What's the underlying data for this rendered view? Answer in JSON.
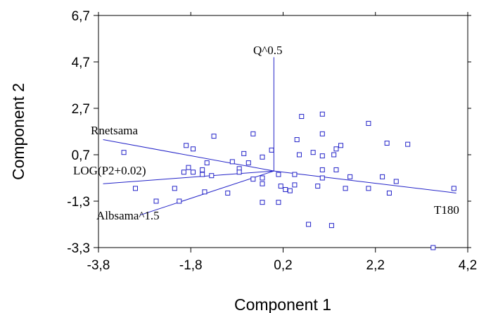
{
  "chart_data": {
    "type": "biplot",
    "xlabel": "Component 1",
    "ylabel": "Component 2",
    "xlim": [
      -3.8,
      4.2
    ],
    "ylim": [
      -3.3,
      6.7
    ],
    "xticks": [
      -3.8,
      -1.8,
      0.2,
      2.2,
      4.2
    ],
    "yticks": [
      -3.3,
      -1.3,
      0.7,
      2.7,
      4.7,
      6.7
    ],
    "xtick_labels": [
      "-3,8",
      "-1,8",
      "0,2",
      "2,2",
      "4,2"
    ],
    "ytick_labels": [
      "-3,3",
      "-1,3",
      "0,7",
      "2,7",
      "4,7",
      "6,7"
    ],
    "color": "#2323c8",
    "vectors": [
      {
        "label": "Q^0.5",
        "x": 0.0,
        "y": 4.9
      },
      {
        "label": "Rnetsama",
        "x": -3.7,
        "y": 1.35
      },
      {
        "label": "LOG(P2+0.02)",
        "x": -3.7,
        "y": -0.55
      },
      {
        "label": "Albsama^1.5",
        "x": -2.9,
        "y": -1.9
      },
      {
        "label": "T180",
        "x": 3.95,
        "y": -0.95
      }
    ],
    "points": [
      [
        1.05,
        2.45
      ],
      [
        2.05,
        2.05
      ],
      [
        0.6,
        2.35
      ],
      [
        -1.3,
        1.5
      ],
      [
        -0.45,
        1.6
      ],
      [
        1.05,
        1.6
      ],
      [
        2.45,
        1.2
      ],
      [
        2.9,
        1.15
      ],
      [
        1.45,
        1.1
      ],
      [
        1.35,
        0.95
      ],
      [
        -1.9,
        1.1
      ],
      [
        -1.75,
        0.95
      ],
      [
        0.5,
        1.35
      ],
      [
        -3.25,
        0.8
      ],
      [
        -0.65,
        0.75
      ],
      [
        -0.05,
        0.9
      ],
      [
        -0.25,
        0.6
      ],
      [
        0.55,
        0.7
      ],
      [
        0.85,
        0.8
      ],
      [
        1.05,
        0.65
      ],
      [
        1.3,
        0.7
      ],
      [
        -1.45,
        0.35
      ],
      [
        -0.9,
        0.4
      ],
      [
        -0.55,
        0.35
      ],
      [
        -1.55,
        0.05
      ],
      [
        -1.85,
        0.15
      ],
      [
        -0.75,
        0.1
      ],
      [
        1.05,
        0.05
      ],
      [
        1.35,
        0.05
      ],
      [
        -1.55,
        -0.15
      ],
      [
        -1.75,
        -0.05
      ],
      [
        -1.95,
        -0.05
      ],
      [
        -1.35,
        -0.2
      ],
      [
        -0.75,
        -0.05
      ],
      [
        -0.25,
        -0.3
      ],
      [
        0.1,
        -0.15
      ],
      [
        0.45,
        -0.15
      ],
      [
        1.05,
        -0.3
      ],
      [
        1.65,
        -0.25
      ],
      [
        2.35,
        -0.25
      ],
      [
        2.65,
        -0.45
      ],
      [
        -0.45,
        -0.35
      ],
      [
        -0.25,
        -0.55
      ],
      [
        0.15,
        -0.65
      ],
      [
        0.45,
        -0.6
      ],
      [
        0.95,
        -0.65
      ],
      [
        1.55,
        -0.75
      ],
      [
        2.05,
        -0.75
      ],
      [
        2.5,
        -0.95
      ],
      [
        -3.0,
        -0.75
      ],
      [
        -2.15,
        -0.75
      ],
      [
        -1.5,
        -0.9
      ],
      [
        -1.0,
        -0.95
      ],
      [
        0.25,
        -0.8
      ],
      [
        0.35,
        -0.85
      ],
      [
        3.9,
        -0.75
      ],
      [
        -2.55,
        -1.3
      ],
      [
        -2.05,
        -1.3
      ],
      [
        -0.25,
        -1.35
      ],
      [
        0.1,
        -1.35
      ],
      [
        0.75,
        -2.3
      ],
      [
        1.25,
        -2.35
      ],
      [
        3.45,
        -3.3
      ]
    ]
  }
}
